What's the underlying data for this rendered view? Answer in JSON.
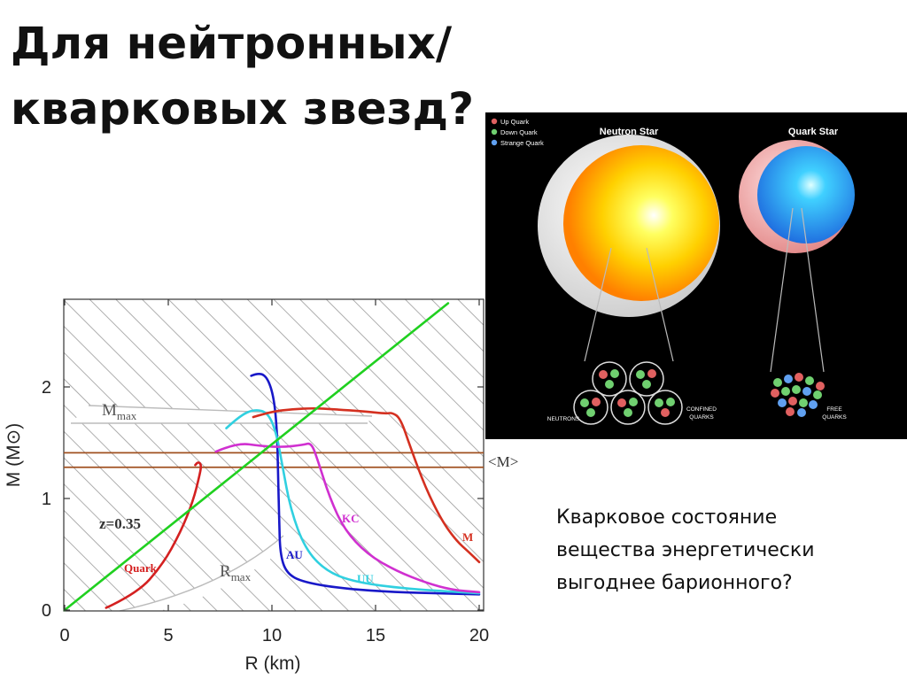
{
  "slide": {
    "title_lines": [
      "Для нейтронных/",
      "кварковых звезд?"
    ],
    "caption_lines": [
      "Кварковое состояние",
      "вещества энергетически",
      "выгоднее барионного?"
    ]
  },
  "star_image": {
    "legend": [
      {
        "label": "Up Quark",
        "color": "#e06060"
      },
      {
        "label": "Down Quark",
        "color": "#70d070"
      },
      {
        "label": "Strange Quark",
        "color": "#60a0f0"
      }
    ],
    "neutron_star_label": "Neutron Star",
    "quark_star_label": "Quark Star",
    "neutrons_label": "NEUTRONS",
    "confined_label": [
      "CONFINED",
      "QUARKS"
    ],
    "free_label": [
      "FREE",
      "QUARKS"
    ]
  },
  "chart_data": {
    "type": "line",
    "xlabel": "R (km)",
    "ylabel": "M (M⊙)",
    "xlim": [
      0,
      20
    ],
    "ylim": [
      0,
      2.8
    ],
    "xticks": [
      0,
      5,
      10,
      15,
      20
    ],
    "yticks": [
      0,
      1,
      2
    ],
    "grid": false,
    "hatched_background": true,
    "series": [
      {
        "name": "Quark",
        "color": "#d42020",
        "points": [
          [
            2.0,
            0.02
          ],
          [
            3.5,
            0.15
          ],
          [
            4.7,
            0.4
          ],
          [
            5.6,
            0.7
          ],
          [
            6.2,
            0.98
          ],
          [
            6.5,
            1.2
          ],
          [
            6.6,
            1.3
          ],
          [
            6.45,
            1.33
          ],
          [
            6.3,
            1.3
          ]
        ]
      },
      {
        "name": "AU",
        "color": "#1818c8",
        "points": [
          [
            9.0,
            2.1
          ],
          [
            9.4,
            2.13
          ],
          [
            9.8,
            2.08
          ],
          [
            10.1,
            1.9
          ],
          [
            10.25,
            1.6
          ],
          [
            10.3,
            1.2
          ],
          [
            10.35,
            0.8
          ],
          [
            10.4,
            0.5
          ],
          [
            10.7,
            0.33
          ],
          [
            11.5,
            0.25
          ],
          [
            13.5,
            0.19
          ],
          [
            16,
            0.16
          ],
          [
            18,
            0.15
          ],
          [
            20,
            0.14
          ]
        ]
      },
      {
        "name": "UU",
        "color": "#30d0e0",
        "points": [
          [
            7.8,
            1.63
          ],
          [
            8.5,
            1.75
          ],
          [
            9.2,
            1.8
          ],
          [
            9.8,
            1.77
          ],
          [
            10.2,
            1.6
          ],
          [
            10.5,
            1.3
          ],
          [
            10.9,
            0.9
          ],
          [
            11.6,
            0.55
          ],
          [
            12.6,
            0.35
          ],
          [
            14.0,
            0.25
          ],
          [
            16.5,
            0.19
          ],
          [
            20,
            0.15
          ]
        ]
      },
      {
        "name": "KC",
        "color": "#d030d0",
        "points": [
          [
            7.3,
            1.42
          ],
          [
            8.3,
            1.5
          ],
          [
            9.5,
            1.47
          ],
          [
            10.5,
            1.46
          ],
          [
            11.5,
            1.48
          ],
          [
            11.9,
            1.5
          ],
          [
            12.2,
            1.35
          ],
          [
            12.8,
            1.0
          ],
          [
            13.5,
            0.72
          ],
          [
            14.6,
            0.5
          ],
          [
            16,
            0.35
          ],
          [
            17.5,
            0.24
          ],
          [
            18.7,
            0.18
          ],
          [
            20,
            0.16
          ]
        ]
      },
      {
        "name": "M",
        "color": "#d43020",
        "points": [
          [
            9.1,
            1.73
          ],
          [
            10.0,
            1.78
          ],
          [
            11.0,
            1.8
          ],
          [
            12.0,
            1.81
          ],
          [
            13.0,
            1.8
          ],
          [
            14.5,
            1.78
          ],
          [
            15.5,
            1.76
          ],
          [
            15.8,
            1.77
          ],
          [
            16.2,
            1.72
          ],
          [
            16.7,
            1.45
          ],
          [
            17.4,
            1.1
          ],
          [
            18.2,
            0.8
          ],
          [
            18.9,
            0.62
          ],
          [
            19.5,
            0.52
          ],
          [
            20,
            0.43
          ]
        ]
      },
      {
        "name": "z=0.35",
        "color": "#20d020",
        "points": [
          [
            0,
            0
          ],
          [
            18.5,
            2.75
          ]
        ]
      }
    ],
    "reference_lines": [
      {
        "label": "<M>",
        "y": 1.41,
        "color": "#a05020"
      },
      {
        "label": "",
        "y": 1.28,
        "color": "#a05020"
      }
    ],
    "annotations": [
      "Mmax",
      "Rmax",
      "z=0.35",
      "Quark",
      "AU",
      "UU",
      "KC",
      "M",
      "<M>"
    ]
  }
}
